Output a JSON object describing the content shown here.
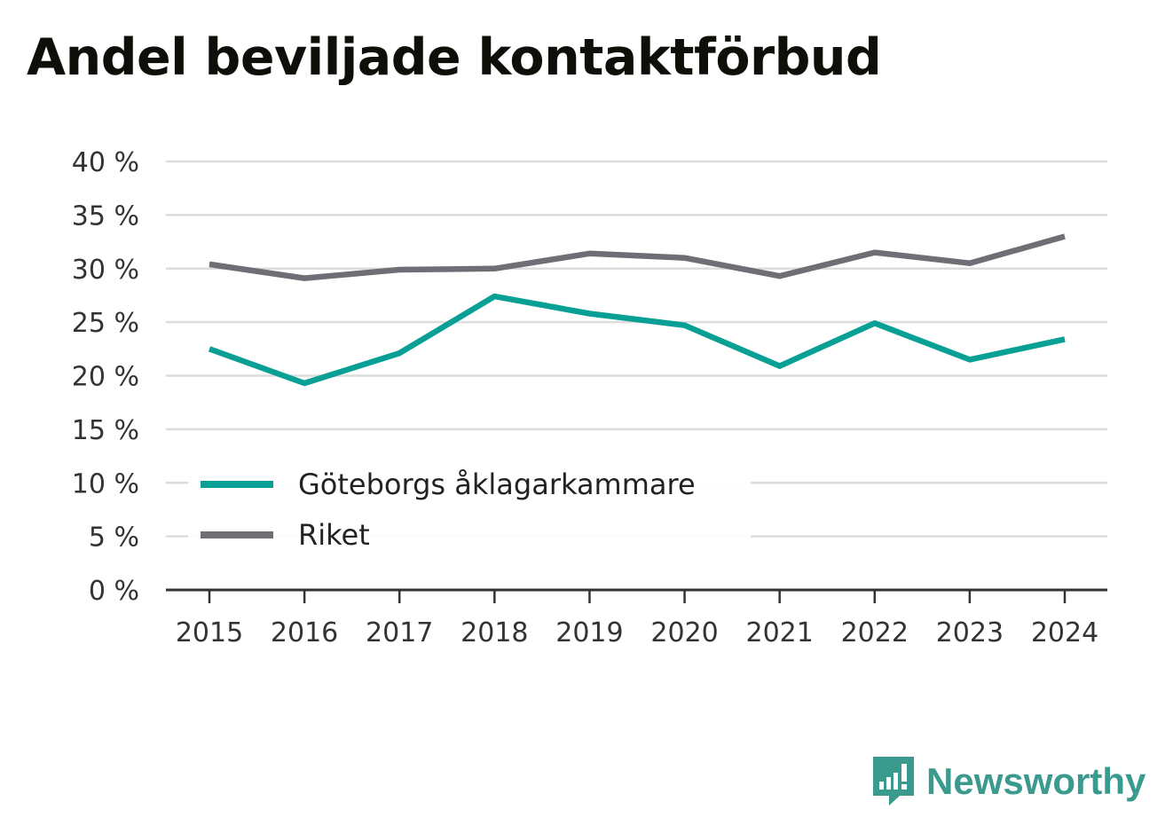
{
  "chart_data": {
    "type": "line",
    "title": "Andel beviljade kontaktförbud",
    "categories": [
      "2015",
      "2016",
      "2017",
      "2018",
      "2019",
      "2020",
      "2021",
      "2022",
      "2023",
      "2024"
    ],
    "series": [
      {
        "name": "Göteborgs åklagarkammare",
        "color": "#08a095",
        "values": [
          22.5,
          19.3,
          22.1,
          27.4,
          25.8,
          24.7,
          20.9,
          24.9,
          21.5,
          23.4
        ]
      },
      {
        "name": "Riket",
        "color": "#6f6e74",
        "values": [
          30.4,
          29.1,
          29.9,
          30.0,
          31.4,
          31.0,
          29.3,
          31.5,
          30.5,
          33.0
        ]
      }
    ],
    "yticks": [
      "0 %",
      "5 %",
      "10 %",
      "15 %",
      "20 %",
      "25 %",
      "30 %",
      "35 %",
      "40 %"
    ],
    "ylim": [
      0,
      40
    ],
    "grid": true,
    "legend_position": "bottom-left"
  },
  "brand": {
    "name": "Newsworthy",
    "color": "#3a9a8e",
    "icon": "newsworthy-logo-icon"
  }
}
